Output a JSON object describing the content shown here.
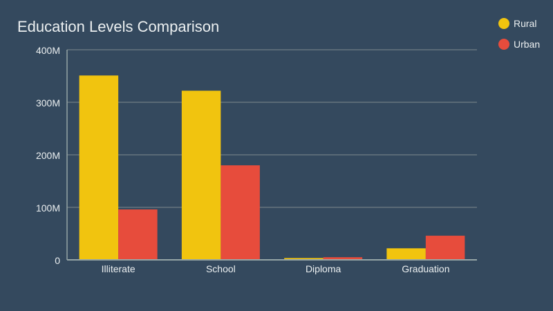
{
  "chart_data": {
    "type": "bar",
    "title": "Education Levels Comparison",
    "categories": [
      "Illiterate",
      "School",
      "Diploma",
      "Graduation"
    ],
    "series": [
      {
        "name": "Rural",
        "color": "#f1c40f",
        "values": [
          351,
          322,
          3.5,
          22
        ]
      },
      {
        "name": "Urban",
        "color": "#e74c3c",
        "values": [
          96,
          180,
          5,
          46
        ]
      }
    ],
    "unit": "millions",
    "yticks": [
      "0",
      "100M",
      "200M",
      "300M",
      "400M"
    ],
    "ylim": [
      0,
      400
    ],
    "grid": true,
    "legend": "top-right"
  }
}
